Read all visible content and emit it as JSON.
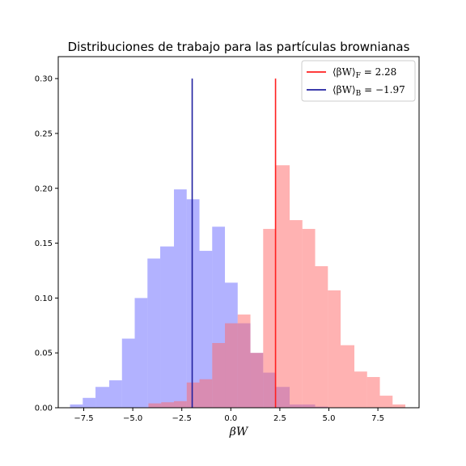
{
  "chart_data": {
    "type": "bar",
    "title": "Distribuciones de trabajo para las partículas brownianas",
    "xlabel": "βW",
    "ylabel": "",
    "xlim": [
      -8.8,
      9.6
    ],
    "ylim": [
      0,
      0.32
    ],
    "xticks": [
      -7.5,
      -5.0,
      -2.5,
      0.0,
      2.5,
      5.0,
      7.5
    ],
    "xtick_labels": [
      "−7.5",
      "−5.0",
      "−2.5",
      "0.0",
      "2.5",
      "5.0",
      "7.5"
    ],
    "yticks": [
      0.0,
      0.05,
      0.1,
      0.15,
      0.2,
      0.25,
      0.3
    ],
    "ytick_labels": [
      "0.00",
      "0.05",
      "0.10",
      "0.15",
      "0.20",
      "0.25",
      "0.30"
    ],
    "series": [
      {
        "name": "backward histogram",
        "color": "#6666ff",
        "opacity": 0.5,
        "bins": [
          [
            -8.2,
            -7.55,
            0.003
          ],
          [
            -7.55,
            -6.9,
            0.009
          ],
          [
            -6.9,
            -6.2,
            0.019
          ],
          [
            -6.2,
            -5.55,
            0.025
          ],
          [
            -5.55,
            -4.9,
            0.063
          ],
          [
            -4.9,
            -4.25,
            0.1
          ],
          [
            -4.25,
            -3.6,
            0.136
          ],
          [
            -3.6,
            -2.9,
            0.147
          ],
          [
            -2.9,
            -2.25,
            0.199
          ],
          [
            -2.25,
            -1.6,
            0.19
          ],
          [
            -1.6,
            -0.95,
            0.143
          ],
          [
            -0.95,
            -0.3,
            0.165
          ],
          [
            -0.3,
            0.35,
            0.114
          ],
          [
            0.35,
            1.0,
            0.077
          ],
          [
            1.0,
            1.65,
            0.05
          ],
          [
            1.65,
            2.3,
            0.032
          ],
          [
            2.3,
            3.0,
            0.019
          ],
          [
            3.0,
            3.65,
            0.003
          ],
          [
            3.65,
            4.3,
            0.003
          ],
          [
            4.3,
            4.95,
            0.001
          ]
        ]
      },
      {
        "name": "forward histogram",
        "color": "#ff6666",
        "opacity": 0.5,
        "bins": [
          [
            -4.2,
            -3.55,
            0.004
          ],
          [
            -3.55,
            -2.9,
            0.005
          ],
          [
            -2.9,
            -2.25,
            0.006
          ],
          [
            -2.25,
            -1.6,
            0.023
          ],
          [
            -1.6,
            -0.95,
            0.026
          ],
          [
            -0.95,
            -0.3,
            0.059
          ],
          [
            -0.3,
            0.35,
            0.077
          ],
          [
            0.35,
            1.0,
            0.085
          ],
          [
            1.0,
            1.65,
            0.05
          ],
          [
            1.65,
            2.3,
            0.163
          ],
          [
            2.3,
            3.0,
            0.221
          ],
          [
            3.0,
            3.65,
            0.171
          ],
          [
            3.65,
            4.3,
            0.163
          ],
          [
            4.3,
            4.95,
            0.129
          ],
          [
            4.95,
            5.6,
            0.107
          ],
          [
            5.6,
            6.3,
            0.057
          ],
          [
            6.3,
            6.95,
            0.033
          ],
          [
            6.95,
            7.6,
            0.028
          ],
          [
            7.6,
            8.25,
            0.011
          ],
          [
            8.25,
            8.9,
            0.003
          ]
        ]
      }
    ],
    "vlines": [
      {
        "x": 2.28,
        "y0": 0.0,
        "y1": 0.3,
        "color": "#ff2020",
        "label": "⟨βW⟩_F = 2.28"
      },
      {
        "x": -1.97,
        "y0": 0.0,
        "y1": 0.3,
        "color": "#2020a0",
        "label": "⟨βW⟩_B = −1.97"
      }
    ],
    "legend": {
      "position": "top-right",
      "entries": [
        {
          "label_main": "⟨βW⟩",
          "label_sub": "F",
          "label_rest": " = 2.28",
          "color": "#ff2020"
        },
        {
          "label_main": "⟨βW⟩",
          "label_sub": "B",
          "label_rest": " = −1.97",
          "color": "#2020a0"
        }
      ]
    },
    "grid": false
  }
}
